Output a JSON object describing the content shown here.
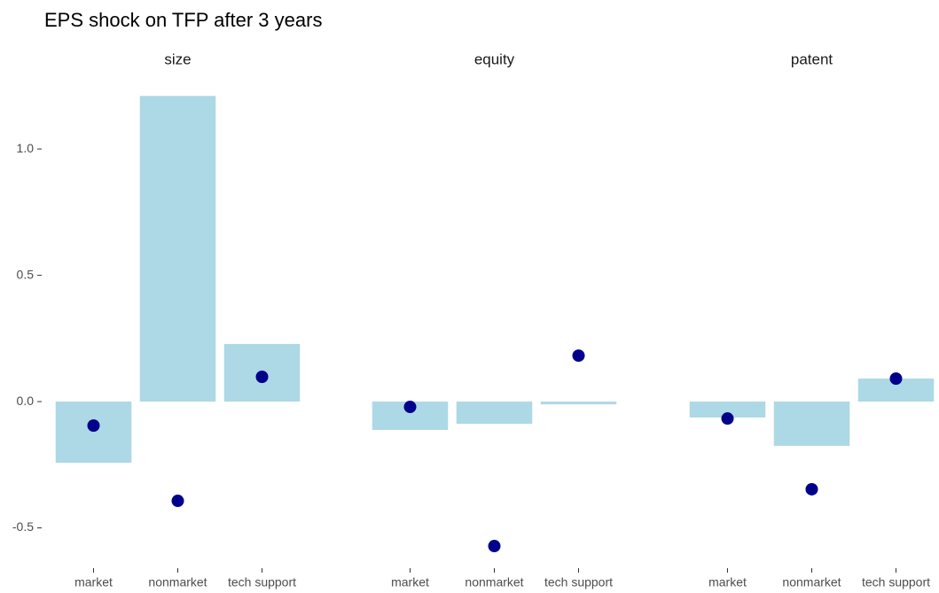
{
  "title": "EPS shock on TFP after 3 years",
  "chart_data": [
    {
      "type": "bar",
      "title": "size",
      "categories": [
        "market",
        "nonmarket",
        "tech support"
      ],
      "series": [
        {
          "type": "bar",
          "color": "#add8e6",
          "values": [
            -0.242,
            1.21,
            0.228
          ]
        },
        {
          "type": "point",
          "color": "#00008b",
          "values": [
            -0.095,
            -0.393,
            0.098
          ]
        }
      ],
      "ylim": [
        -0.656,
        1.274
      ],
      "yticks": [
        -0.5,
        {
          "value": 0,
          "label": "0.0"
        },
        0.5,
        {
          "value": 1,
          "label": "1.0"
        }
      ]
    },
    {
      "type": "bar",
      "title": "equity",
      "categories": [
        "market",
        "nonmarket",
        "tech support"
      ],
      "series": [
        {
          "type": "bar",
          "color": "#add8e6",
          "values": [
            -0.112,
            -0.088,
            -0.011
          ]
        },
        {
          "type": "point",
          "color": "#00008b",
          "values": [
            -0.021,
            -0.572,
            0.182
          ]
        }
      ],
      "ylim": [
        -0.656,
        1.274
      ]
    },
    {
      "type": "bar",
      "title": "patent",
      "categories": [
        "market",
        "nonmarket",
        "tech support"
      ],
      "series": [
        {
          "type": "bar",
          "color": "#add8e6",
          "values": [
            -0.063,
            -0.175,
            0.091
          ]
        },
        {
          "type": "point",
          "color": "#00008b",
          "values": [
            -0.067,
            -0.347,
            0.091
          ]
        }
      ],
      "ylim": [
        -0.656,
        1.274
      ]
    }
  ]
}
